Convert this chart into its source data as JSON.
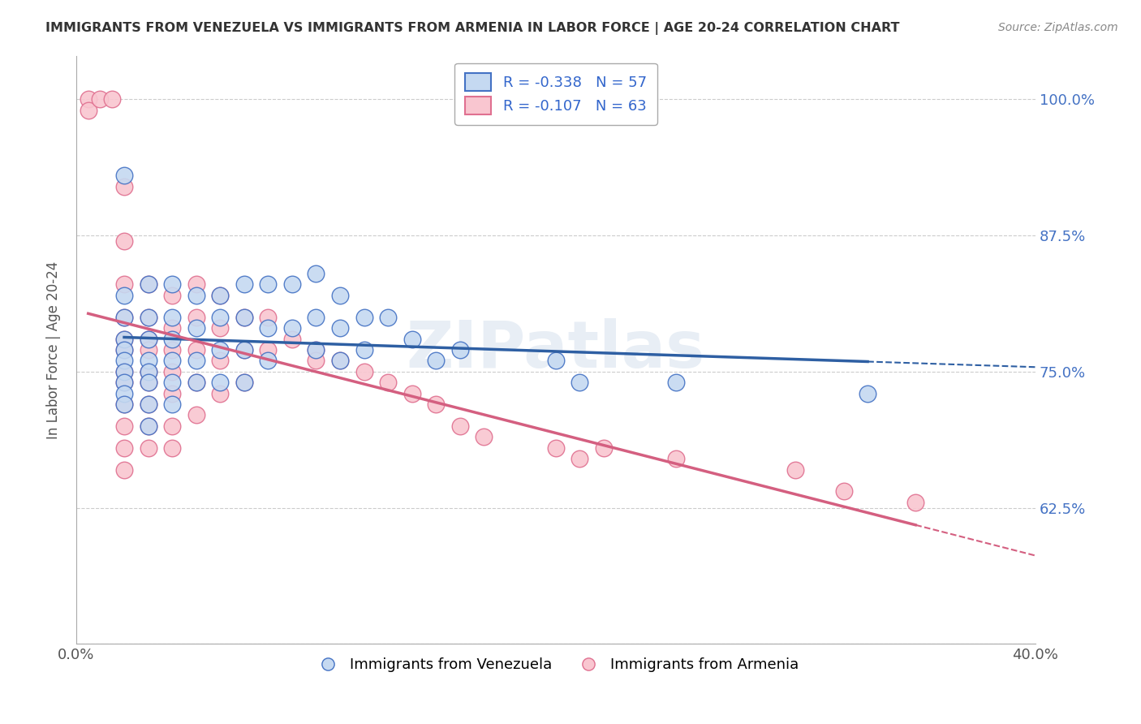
{
  "title": "IMMIGRANTS FROM VENEZUELA VS IMMIGRANTS FROM ARMENIA IN LABOR FORCE | AGE 20-24 CORRELATION CHART",
  "source": "Source: ZipAtlas.com",
  "ylabel": "In Labor Force | Age 20-24",
  "xlim": [
    0.0,
    0.4
  ],
  "ylim": [
    0.5,
    1.04
  ],
  "xticks": [
    0.0,
    0.4
  ],
  "xticklabels": [
    "0.0%",
    "40.0%"
  ],
  "yticks_right": [
    0.5,
    0.625,
    0.75,
    0.875,
    1.0
  ],
  "ytick_right_labels": [
    "",
    "62.5%",
    "75.0%",
    "87.5%",
    "100.0%"
  ],
  "legend_r1": "R = -0.338",
  "legend_n1": "N = 57",
  "legend_r2": "R = -0.107",
  "legend_n2": "N = 63",
  "watermark": "ZIPatlas",
  "blue_color": "#c5d9f1",
  "pink_color": "#f9c6d0",
  "blue_edge_color": "#4472c4",
  "pink_edge_color": "#e07090",
  "blue_line_color": "#2e5fa3",
  "pink_line_color": "#d45f80",
  "blue_scatter": [
    [
      0.02,
      0.93
    ],
    [
      0.02,
      0.82
    ],
    [
      0.02,
      0.8
    ],
    [
      0.02,
      0.78
    ],
    [
      0.02,
      0.77
    ],
    [
      0.02,
      0.76
    ],
    [
      0.02,
      0.75
    ],
    [
      0.02,
      0.74
    ],
    [
      0.02,
      0.73
    ],
    [
      0.02,
      0.72
    ],
    [
      0.03,
      0.83
    ],
    [
      0.03,
      0.8
    ],
    [
      0.03,
      0.78
    ],
    [
      0.03,
      0.76
    ],
    [
      0.03,
      0.75
    ],
    [
      0.03,
      0.74
    ],
    [
      0.03,
      0.72
    ],
    [
      0.03,
      0.7
    ],
    [
      0.04,
      0.83
    ],
    [
      0.04,
      0.8
    ],
    [
      0.04,
      0.78
    ],
    [
      0.04,
      0.76
    ],
    [
      0.04,
      0.74
    ],
    [
      0.04,
      0.72
    ],
    [
      0.05,
      0.82
    ],
    [
      0.05,
      0.79
    ],
    [
      0.05,
      0.76
    ],
    [
      0.05,
      0.74
    ],
    [
      0.06,
      0.82
    ],
    [
      0.06,
      0.8
    ],
    [
      0.06,
      0.77
    ],
    [
      0.06,
      0.74
    ],
    [
      0.07,
      0.83
    ],
    [
      0.07,
      0.8
    ],
    [
      0.07,
      0.77
    ],
    [
      0.07,
      0.74
    ],
    [
      0.08,
      0.83
    ],
    [
      0.08,
      0.79
    ],
    [
      0.08,
      0.76
    ],
    [
      0.09,
      0.83
    ],
    [
      0.09,
      0.79
    ],
    [
      0.1,
      0.84
    ],
    [
      0.1,
      0.8
    ],
    [
      0.1,
      0.77
    ],
    [
      0.11,
      0.82
    ],
    [
      0.11,
      0.79
    ],
    [
      0.11,
      0.76
    ],
    [
      0.12,
      0.8
    ],
    [
      0.12,
      0.77
    ],
    [
      0.13,
      0.8
    ],
    [
      0.14,
      0.78
    ],
    [
      0.15,
      0.76
    ],
    [
      0.16,
      0.77
    ],
    [
      0.2,
      0.76
    ],
    [
      0.21,
      0.74
    ],
    [
      0.25,
      0.74
    ],
    [
      0.33,
      0.73
    ]
  ],
  "pink_scatter": [
    [
      0.005,
      1.0
    ],
    [
      0.005,
      0.99
    ],
    [
      0.01,
      1.0
    ],
    [
      0.015,
      1.0
    ],
    [
      0.02,
      0.92
    ],
    [
      0.02,
      0.87
    ],
    [
      0.02,
      0.83
    ],
    [
      0.02,
      0.8
    ],
    [
      0.02,
      0.78
    ],
    [
      0.02,
      0.77
    ],
    [
      0.02,
      0.75
    ],
    [
      0.02,
      0.74
    ],
    [
      0.02,
      0.72
    ],
    [
      0.02,
      0.7
    ],
    [
      0.02,
      0.68
    ],
    [
      0.02,
      0.66
    ],
    [
      0.03,
      0.83
    ],
    [
      0.03,
      0.8
    ],
    [
      0.03,
      0.78
    ],
    [
      0.03,
      0.77
    ],
    [
      0.03,
      0.75
    ],
    [
      0.03,
      0.74
    ],
    [
      0.03,
      0.72
    ],
    [
      0.03,
      0.7
    ],
    [
      0.03,
      0.68
    ],
    [
      0.04,
      0.82
    ],
    [
      0.04,
      0.79
    ],
    [
      0.04,
      0.77
    ],
    [
      0.04,
      0.75
    ],
    [
      0.04,
      0.73
    ],
    [
      0.04,
      0.7
    ],
    [
      0.04,
      0.68
    ],
    [
      0.05,
      0.83
    ],
    [
      0.05,
      0.8
    ],
    [
      0.05,
      0.77
    ],
    [
      0.05,
      0.74
    ],
    [
      0.05,
      0.71
    ],
    [
      0.06,
      0.82
    ],
    [
      0.06,
      0.79
    ],
    [
      0.06,
      0.76
    ],
    [
      0.06,
      0.73
    ],
    [
      0.07,
      0.8
    ],
    [
      0.07,
      0.77
    ],
    [
      0.07,
      0.74
    ],
    [
      0.08,
      0.8
    ],
    [
      0.08,
      0.77
    ],
    [
      0.09,
      0.78
    ],
    [
      0.1,
      0.77
    ],
    [
      0.1,
      0.76
    ],
    [
      0.11,
      0.76
    ],
    [
      0.12,
      0.75
    ],
    [
      0.13,
      0.74
    ],
    [
      0.14,
      0.73
    ],
    [
      0.15,
      0.72
    ],
    [
      0.16,
      0.7
    ],
    [
      0.17,
      0.69
    ],
    [
      0.2,
      0.68
    ],
    [
      0.21,
      0.67
    ],
    [
      0.22,
      0.68
    ],
    [
      0.25,
      0.67
    ],
    [
      0.3,
      0.66
    ],
    [
      0.32,
      0.64
    ],
    [
      0.35,
      0.63
    ]
  ]
}
